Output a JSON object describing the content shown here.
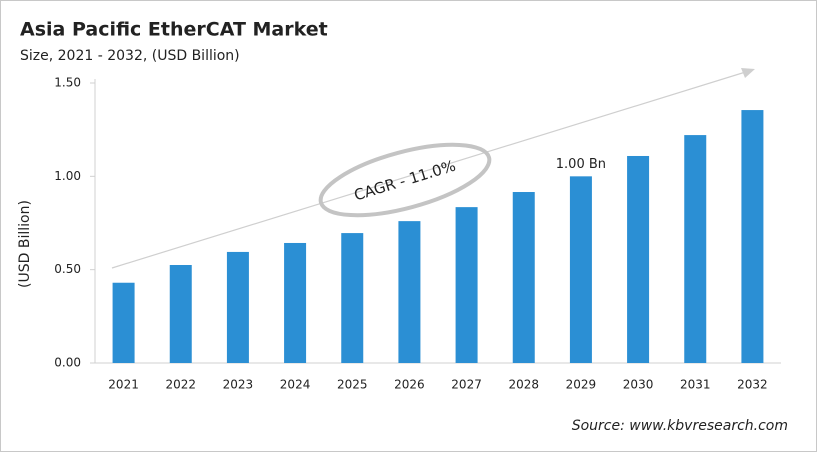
{
  "chart_data": {
    "type": "bar",
    "title": "Asia Pacific EtherCAT Market",
    "subtitle": "Size, 2021 - 2032, (USD Billion)",
    "y_label": "(USD Billion)",
    "annotation": "CAGR - 11.0%",
    "source": "Source: www.kbvresearch.com",
    "categories": [
      "2021",
      "2022",
      "2023",
      "2024",
      "2025",
      "2026",
      "2027",
      "2028",
      "2029",
      "2030",
      "2031",
      "2032"
    ],
    "values": [
      0.43,
      0.525,
      0.595,
      0.643,
      0.696,
      0.76,
      0.835,
      0.916,
      1.0,
      1.109,
      1.221,
      1.355
    ],
    "value_labels": [
      null,
      null,
      null,
      null,
      null,
      null,
      null,
      null,
      "1.00 Bn",
      null,
      null,
      null
    ],
    "color": "#2b8fd4",
    "ylim": [
      0,
      1.5
    ],
    "yticks": [
      {
        "value": 0,
        "label": "0.00"
      },
      {
        "value": 0.5,
        "label": "0.50"
      },
      {
        "value": 1,
        "label": "1.00"
      },
      {
        "value": 1.5,
        "label": "1.50"
      }
    ],
    "grid": false
  }
}
